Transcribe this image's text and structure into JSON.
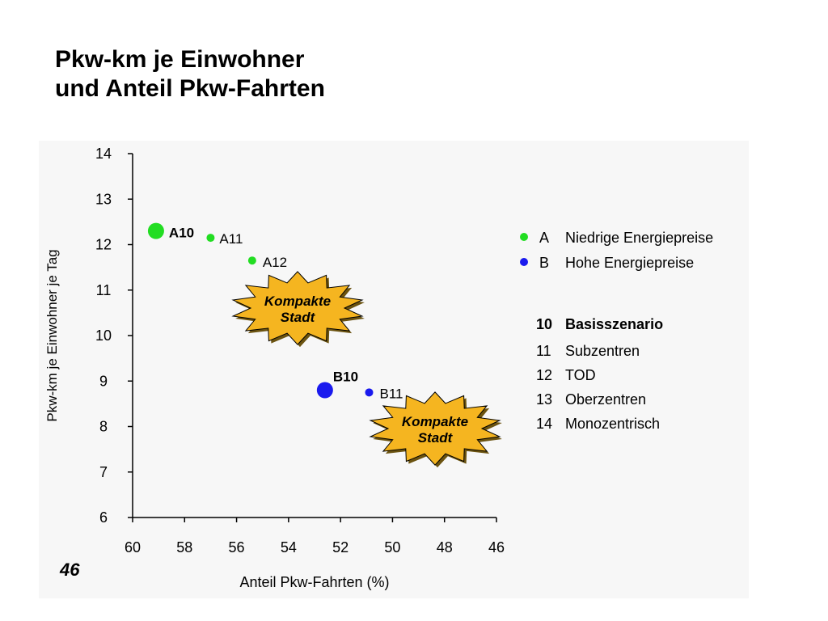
{
  "title_lines": [
    "Pkw-km je Einwohner",
    "und Anteil Pkw-Fahrten"
  ],
  "page_number": "46",
  "chart_data": {
    "type": "scatter",
    "xlabel": "Anteil Pkw-Fahrten (%)",
    "ylabel": "Pkw-km je Einwohner je Tag",
    "xlim": [
      60,
      46
    ],
    "ylim": [
      6,
      14
    ],
    "x_reversed": true,
    "x_ticks": [
      60,
      58,
      56,
      54,
      52,
      50,
      48,
      46
    ],
    "y_ticks": [
      6,
      7,
      8,
      9,
      10,
      11,
      12,
      13,
      14
    ],
    "grid": false,
    "series": [
      {
        "name": "Niedrige Energiepreise",
        "color": "#22dd22",
        "points": [
          {
            "label": "A10",
            "x": 59.1,
            "y": 12.3
          },
          {
            "label": "A11",
            "x": 57.0,
            "y": 12.15
          },
          {
            "label": "A12",
            "x": 55.4,
            "y": 11.65
          }
        ]
      },
      {
        "name": "Hohe Energiepreise",
        "color": "#1a1aee",
        "points": [
          {
            "label": "B10",
            "x": 52.6,
            "y": 8.8
          },
          {
            "label": "B11",
            "x": 50.9,
            "y": 8.75
          }
        ]
      }
    ],
    "legend": {
      "placement": "right",
      "series_entries": [
        {
          "key": "A",
          "text": "Niedrige Energiepreise",
          "color": "#22dd22"
        },
        {
          "key": "B",
          "text": "Hohe Energiepreise",
          "color": "#1a1aee"
        }
      ],
      "scenario_entries": [
        {
          "key": "10",
          "text": "Basisszenario"
        },
        {
          "key": "11",
          "text": "Subzentren"
        },
        {
          "key": "12",
          "text": "TOD"
        },
        {
          "key": "13",
          "text": "Oberzentren"
        },
        {
          "key": "14",
          "text": "Monozentrisch"
        }
      ]
    },
    "annotations": [
      {
        "line1": "Kompakte",
        "line2": "Stadt",
        "color": "#f5b520"
      },
      {
        "line1": "Kompakte",
        "line2": "Stadt",
        "color": "#f5b520"
      }
    ]
  }
}
